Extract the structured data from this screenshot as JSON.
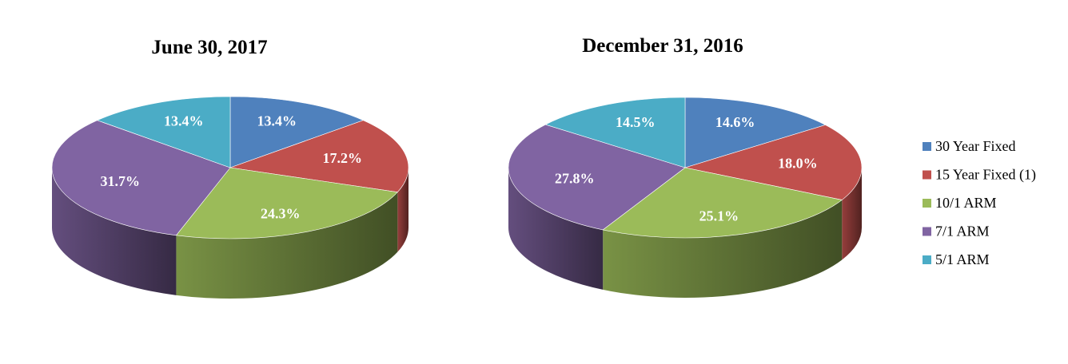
{
  "chart_data": [
    {
      "type": "pie",
      "title": "June 30, 2017",
      "slices": [
        {
          "label": "30 Year Fixed",
          "value": 13.4,
          "display": "13.4%"
        },
        {
          "label": "15 Year Fixed (1)",
          "value": 17.2,
          "display": "17.2%"
        },
        {
          "label": "10/1 ARM",
          "value": 24.3,
          "display": "24.3%"
        },
        {
          "label": "7/1 ARM",
          "value": 31.7,
          "display": "31.7%"
        },
        {
          "label": "5/1 ARM",
          "value": 13.4,
          "display": "13.4%"
        }
      ]
    },
    {
      "type": "pie",
      "title": "December 31, 2016",
      "slices": [
        {
          "label": "30 Year Fixed",
          "value": 14.6,
          "display": "14.6%"
        },
        {
          "label": "15 Year Fixed (1)",
          "value": 18.0,
          "display": "18.0%"
        },
        {
          "label": "10/1 ARM",
          "value": 25.1,
          "display": "25.1%"
        },
        {
          "label": "7/1 ARM",
          "value": 27.8,
          "display": "27.8%"
        },
        {
          "label": "5/1 ARM",
          "value": 14.5,
          "display": "14.5%"
        }
      ]
    }
  ],
  "legend": {
    "placement": "right",
    "entries": [
      {
        "label": "30 Year Fixed",
        "color": "#4F81BD"
      },
      {
        "label": "15 Year Fixed (1)",
        "color": "#C0504D"
      },
      {
        "label": "10/1 ARM",
        "color": "#9BBB59"
      },
      {
        "label": "7/1 ARM",
        "color": "#8064A2"
      },
      {
        "label": "5/1 ARM",
        "color": "#4BACC6"
      }
    ]
  },
  "style": {
    "pie_style": "3d"
  }
}
